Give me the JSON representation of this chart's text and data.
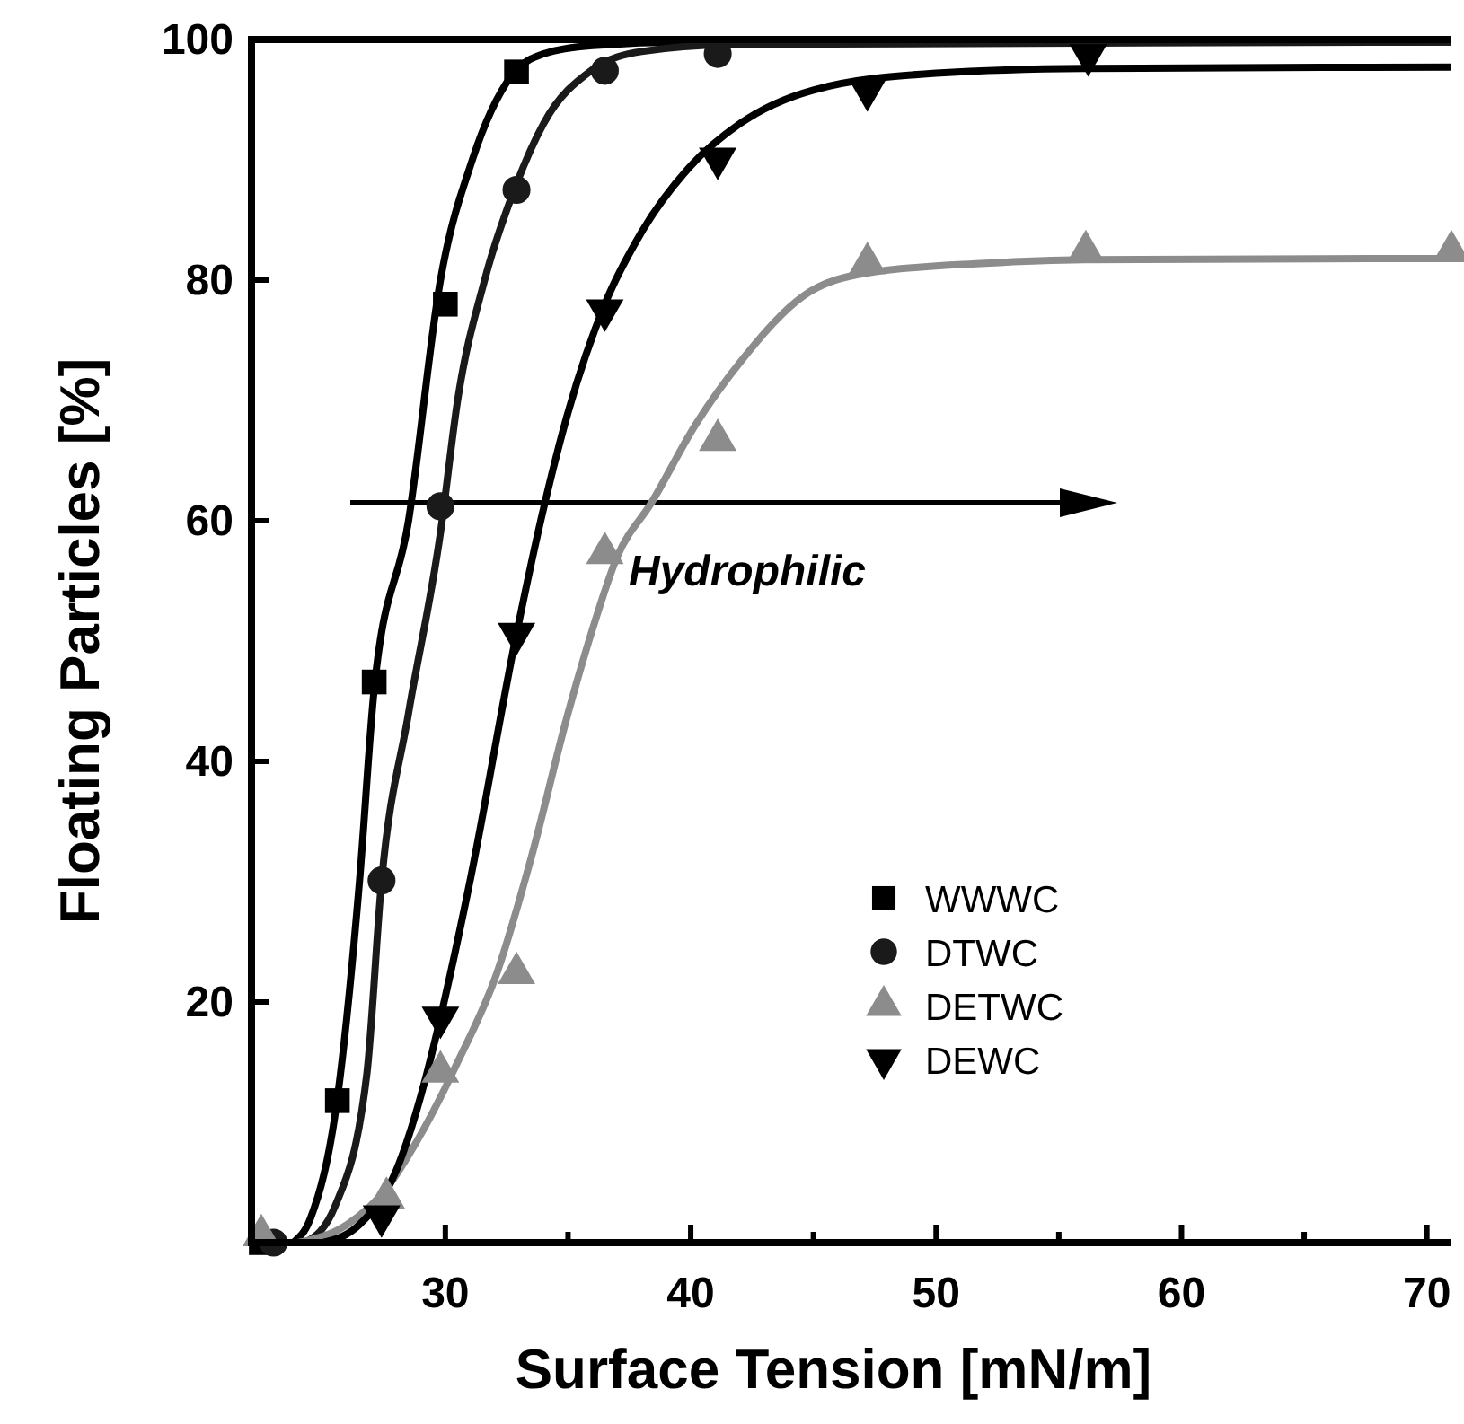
{
  "chart_data": {
    "type": "scatter",
    "xlabel": "Surface Tension [mN/m]",
    "ylabel": "Floating Particles [%]",
    "annotations": [
      "Hydrophilic"
    ],
    "xlim": [
      22.1,
      71
    ],
    "ylim": [
      0,
      100
    ],
    "xticks": [
      30,
      {
        "value": 35,
        "label": null
      },
      40,
      {
        "value": 45,
        "label": null
      },
      50,
      {
        "value": 55,
        "label": null
      },
      60,
      {
        "value": 65,
        "label": null
      },
      70
    ],
    "yticks": [
      20,
      40,
      60,
      80,
      100
    ],
    "grid": false,
    "legend": "bottom right",
    "series": [
      {
        "name": "WWWC",
        "color": "#000000",
        "marker": "square",
        "x": [
          22.5,
          25.6,
          27.1,
          30,
          32.9
        ],
        "values": [
          0,
          11.8,
          46.6,
          78,
          97.3
        ]
      },
      {
        "name": "DTWC",
        "color": "#1a1a1a",
        "marker": "circle",
        "x": [
          23,
          27.4,
          29.8,
          32.9,
          36.5,
          41.1
        ],
        "values": [
          0,
          30.1,
          61.2,
          87.5,
          97.4,
          98.8
        ]
      },
      {
        "name": "DETWC",
        "color": "#8c8c8c",
        "marker": "triangle",
        "x": [
          22.5,
          27.6,
          29.8,
          32.9,
          36.5,
          41.1,
          47.2,
          56.1,
          71
        ],
        "values": [
          0.6,
          3.7,
          14.2,
          22.4,
          57.3,
          66.7,
          81.4,
          82.4,
          82.4
        ]
      },
      {
        "name": "DEWC",
        "color": "#000000",
        "marker": "triangle-down",
        "x": [
          27.4,
          29.8,
          32.9,
          36.5,
          41.1,
          47.2,
          56.2
        ],
        "values": [
          2.2,
          18.7,
          50.6,
          77.5,
          90.1,
          95.8,
          98.7
        ]
      },
      {
        "type": "line",
        "color": "#000000",
        "marker": "none",
        "x": [
          23.8,
          24.5,
          25.6,
          26.5,
          27.1,
          28.5,
          29.8,
          31.1,
          32.7,
          34,
          36,
          40,
          71
        ],
        "values": [
          0,
          2,
          12,
          30,
          46,
          60,
          80,
          90,
          97,
          98.8,
          99.5,
          99.8,
          99.8
        ]
      },
      {
        "type": "line",
        "color": "#1a1a1a",
        "marker": "none",
        "x": [
          24.3,
          25.5,
          26.8,
          27.4,
          28.5,
          29.8,
          30.5,
          31.6,
          32.9,
          34,
          36,
          38,
          42,
          71
        ],
        "values": [
          0,
          3,
          14,
          30,
          44,
          59,
          70,
          80,
          88,
          93,
          97.5,
          99,
          99.6,
          99.8
        ]
      },
      {
        "type": "line",
        "color": "#8c8c8c",
        "marker": "none",
        "x": [
          24,
          26,
          27.6,
          29,
          30.5,
          32.1,
          33.5,
          35,
          36,
          37,
          38.4,
          40.2,
          42.1,
          44.6,
          47.2,
          52,
          56,
          71
        ],
        "values": [
          0,
          1.5,
          4.5,
          9,
          15,
          22.4,
          32,
          44,
          51,
          57,
          61.5,
          68,
          73.4,
          78.7,
          80.6,
          81.4,
          81.7,
          81.8
        ]
      },
      {
        "type": "line",
        "color": "#000000",
        "marker": "none",
        "x": [
          25,
          26.5,
          28,
          29.2,
          29.8,
          31,
          32.9,
          34,
          35,
          36.5,
          38,
          40,
          42,
          45,
          50,
          56,
          71
        ],
        "values": [
          0,
          1.5,
          6,
          13.7,
          18.7,
          30,
          50.6,
          61,
          69,
          78,
          84,
          89.5,
          93,
          95.8,
          97.2,
          97.6,
          97.7
        ]
      }
    ]
  }
}
